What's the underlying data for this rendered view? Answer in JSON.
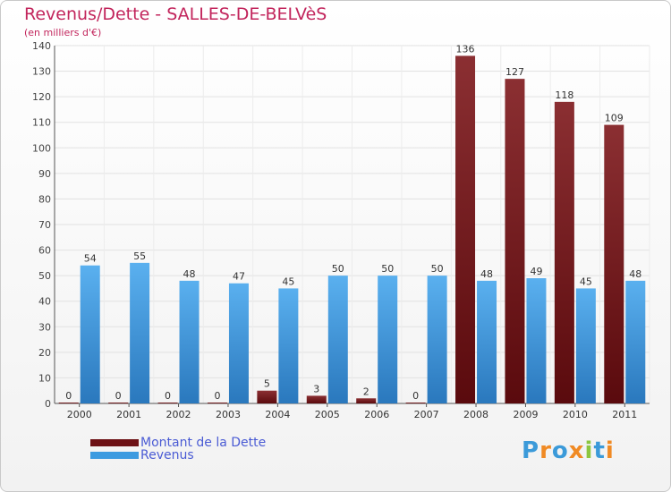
{
  "chart_data": {
    "type": "bar",
    "title": "Revenus/Dette - SALLES-DE-BELVèS",
    "subtitle": "(en milliers d'€)",
    "xlabel": "",
    "ylabel": "",
    "ylim": [
      0,
      140
    ],
    "ytick_step": 10,
    "grid": true,
    "categories": [
      "2000",
      "2001",
      "2002",
      "2003",
      "2004",
      "2005",
      "2006",
      "2007",
      "2008",
      "2009",
      "2010",
      "2011"
    ],
    "series": [
      {
        "name": "Montant de la Dette",
        "color": "#7a1a1d",
        "values": [
          0,
          0,
          0,
          0,
          5,
          3,
          2,
          0,
          136,
          127,
          118,
          109
        ]
      },
      {
        "name": "Revenus",
        "color": "#3d9be0",
        "values": [
          54,
          55,
          48,
          47,
          45,
          50,
          50,
          50,
          48,
          49,
          45,
          48
        ]
      }
    ],
    "legend_position": "bottom-left"
  },
  "legend": {
    "debt_label": "Montant de la Dette",
    "revenue_label": "Revenus"
  },
  "brand": {
    "letters": [
      "P",
      "r",
      "o",
      "x",
      "i",
      "t",
      "i"
    ],
    "colors": [
      "#3b9ad9",
      "#f08a24",
      "#3b9ad9",
      "#f08a24",
      "#8cc63f",
      "#3b9ad9",
      "#f08a24"
    ]
  }
}
